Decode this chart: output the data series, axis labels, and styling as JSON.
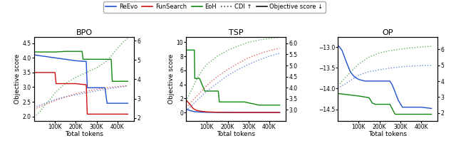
{
  "bpo": {
    "title": "BPO",
    "xlabel": "Total tokens",
    "ylabel": "Objective score",
    "xlim": [
      0,
      480000
    ],
    "ylim_left": [
      1.85,
      4.72
    ],
    "ylim_right": [
      1.85,
      6.2
    ],
    "xticks": [
      100000,
      200000,
      300000,
      400000
    ],
    "xtick_labels": [
      "100K",
      "200K",
      "300K",
      "400K"
    ],
    "yticks_left": [
      2.0,
      2.5,
      3.0,
      3.5,
      4.0,
      4.5
    ],
    "yticks_right": [
      2.0,
      3.0,
      4.0,
      5.0,
      6.0
    ],
    "reevo_obj": [
      [
        0,
        4.1
      ],
      [
        50000,
        4.05
      ],
      [
        100000,
        4.0
      ],
      [
        150000,
        3.95
      ],
      [
        200000,
        3.9
      ],
      [
        240000,
        3.88
      ],
      [
        250000,
        3.88
      ],
      [
        255000,
        2.98
      ],
      [
        260000,
        2.98
      ],
      [
        300000,
        2.98
      ],
      [
        340000,
        2.98
      ],
      [
        350000,
        2.45
      ],
      [
        360000,
        2.45
      ],
      [
        450000,
        2.45
      ]
    ],
    "funsearch_obj": [
      [
        0,
        3.5
      ],
      [
        100000,
        3.5
      ],
      [
        105000,
        3.12
      ],
      [
        150000,
        3.12
      ],
      [
        200000,
        3.12
      ],
      [
        250000,
        3.08
      ],
      [
        255000,
        2.08
      ],
      [
        260000,
        2.08
      ],
      [
        380000,
        2.08
      ],
      [
        385000,
        2.08
      ],
      [
        450000,
        2.08
      ]
    ],
    "eoh_obj": [
      [
        0,
        4.2
      ],
      [
        100000,
        4.2
      ],
      [
        150000,
        4.22
      ],
      [
        200000,
        4.22
      ],
      [
        230000,
        4.22
      ],
      [
        235000,
        3.95
      ],
      [
        250000,
        3.95
      ],
      [
        290000,
        3.95
      ],
      [
        320000,
        3.95
      ],
      [
        370000,
        3.95
      ],
      [
        375000,
        3.2
      ],
      [
        390000,
        3.2
      ],
      [
        450000,
        3.2
      ]
    ],
    "reevo_cdi": [
      [
        0,
        2.55
      ],
      [
        50000,
        2.75
      ],
      [
        100000,
        2.95
      ],
      [
        150000,
        3.1
      ],
      [
        200000,
        3.2
      ],
      [
        250000,
        3.3
      ],
      [
        300000,
        3.4
      ],
      [
        350000,
        3.5
      ],
      [
        400000,
        3.58
      ],
      [
        450000,
        3.65
      ]
    ],
    "funsearch_cdi": [
      [
        0,
        2.45
      ],
      [
        50000,
        2.68
      ],
      [
        100000,
        2.9
      ],
      [
        150000,
        3.08
      ],
      [
        200000,
        3.25
      ],
      [
        250000,
        3.38
      ],
      [
        300000,
        3.48
      ],
      [
        350000,
        3.56
      ],
      [
        400000,
        3.62
      ],
      [
        450000,
        3.68
      ]
    ],
    "eoh_cdi": [
      [
        0,
        2.05
      ],
      [
        30000,
        2.35
      ],
      [
        50000,
        2.65
      ],
      [
        80000,
        3.0
      ],
      [
        100000,
        3.3
      ],
      [
        130000,
        3.6
      ],
      [
        150000,
        3.78
      ],
      [
        200000,
        4.1
      ],
      [
        250000,
        4.35
      ],
      [
        300000,
        4.6
      ],
      [
        350000,
        4.95
      ],
      [
        400000,
        5.6
      ],
      [
        430000,
        5.95
      ],
      [
        450000,
        6.12
      ]
    ]
  },
  "tsp": {
    "title": "TSP",
    "xlabel": "Total tokens",
    "ylabel": "Objective score",
    "xlim": [
      0,
      480000
    ],
    "ylim_left": [
      -1.2,
      10.8
    ],
    "ylim_right": [
      2.5,
      6.3
    ],
    "xticks": [
      100000,
      200000,
      300000,
      400000
    ],
    "xtick_labels": [
      "100K",
      "200K",
      "300K",
      "400K"
    ],
    "yticks_left": [
      0,
      2,
      4,
      6,
      8,
      10
    ],
    "yticks_right": [
      3.0,
      3.5,
      4.0,
      4.5,
      5.0,
      5.5,
      6.0
    ],
    "reevo_obj": [
      [
        0,
        0.5
      ],
      [
        20000,
        0.25
      ],
      [
        40000,
        0.12
      ],
      [
        70000,
        0.05
      ],
      [
        100000,
        0.02
      ],
      [
        200000,
        0.0
      ],
      [
        450000,
        0.0
      ]
    ],
    "funsearch_obj": [
      [
        0,
        1.8
      ],
      [
        20000,
        1.1
      ],
      [
        35000,
        0.55
      ],
      [
        50000,
        0.3
      ],
      [
        70000,
        0.18
      ],
      [
        100000,
        0.08
      ],
      [
        150000,
        0.03
      ],
      [
        200000,
        0.01
      ],
      [
        300000,
        0.0
      ],
      [
        450000,
        0.0
      ]
    ],
    "eoh_obj": [
      [
        0,
        8.9
      ],
      [
        40000,
        8.9
      ],
      [
        42000,
        4.85
      ],
      [
        60000,
        4.85
      ],
      [
        65000,
        4.85
      ],
      [
        90000,
        3.05
      ],
      [
        100000,
        3.05
      ],
      [
        155000,
        3.05
      ],
      [
        160000,
        1.5
      ],
      [
        230000,
        1.5
      ],
      [
        280000,
        1.5
      ],
      [
        350000,
        1.05
      ],
      [
        360000,
        1.05
      ],
      [
        450000,
        1.05
      ]
    ],
    "reevo_cdi": [
      [
        0,
        2.95
      ],
      [
        50000,
        3.4
      ],
      [
        100000,
        3.85
      ],
      [
        150000,
        4.2
      ],
      [
        200000,
        4.55
      ],
      [
        250000,
        4.82
      ],
      [
        300000,
        5.05
      ],
      [
        350000,
        5.25
      ],
      [
        400000,
        5.42
      ],
      [
        450000,
        5.55
      ]
    ],
    "funsearch_cdi": [
      [
        0,
        3.1
      ],
      [
        50000,
        3.6
      ],
      [
        100000,
        4.1
      ],
      [
        150000,
        4.5
      ],
      [
        200000,
        4.82
      ],
      [
        250000,
        5.1
      ],
      [
        300000,
        5.35
      ],
      [
        350000,
        5.52
      ],
      [
        400000,
        5.67
      ],
      [
        450000,
        5.78
      ]
    ],
    "eoh_cdi": [
      [
        0,
        3.4
      ],
      [
        50000,
        4.35
      ],
      [
        80000,
        4.82
      ],
      [
        100000,
        5.05
      ],
      [
        150000,
        5.42
      ],
      [
        200000,
        5.68
      ],
      [
        250000,
        5.88
      ],
      [
        300000,
        6.05
      ],
      [
        350000,
        6.15
      ],
      [
        400000,
        6.22
      ],
      [
        450000,
        6.28
      ]
    ]
  },
  "op": {
    "title": "OP",
    "xlabel": "Total tokens",
    "ylabel": "Objective score",
    "xlim": [
      0,
      480000
    ],
    "ylim_left": [
      -14.78,
      -12.75
    ],
    "ylim_right": [
      1.5,
      6.8
    ],
    "xticks": [
      100000,
      200000,
      300000,
      400000
    ],
    "xtick_labels": [
      "100K",
      "200K",
      "300K",
      "400K"
    ],
    "yticks_left": [
      -14.5,
      -14.0,
      -13.5,
      -13.0
    ],
    "yticks_right": [
      2.0,
      3.0,
      4.0,
      5.0,
      6.0
    ],
    "reevo_obj": [
      [
        0,
        -12.95
      ],
      [
        20000,
        -13.08
      ],
      [
        40000,
        -13.35
      ],
      [
        60000,
        -13.6
      ],
      [
        80000,
        -13.72
      ],
      [
        100000,
        -13.78
      ],
      [
        130000,
        -13.82
      ],
      [
        170000,
        -13.82
      ],
      [
        200000,
        -13.82
      ],
      [
        250000,
        -13.82
      ],
      [
        260000,
        -13.9
      ],
      [
        270000,
        -14.02
      ],
      [
        290000,
        -14.28
      ],
      [
        310000,
        -14.45
      ],
      [
        350000,
        -14.45
      ],
      [
        400000,
        -14.45
      ],
      [
        450000,
        -14.48
      ]
    ],
    "funsearch_obj": [],
    "eoh_obj": [
      [
        0,
        -14.12
      ],
      [
        50000,
        -14.15
      ],
      [
        100000,
        -14.18
      ],
      [
        150000,
        -14.22
      ],
      [
        165000,
        -14.35
      ],
      [
        180000,
        -14.38
      ],
      [
        210000,
        -14.38
      ],
      [
        250000,
        -14.38
      ],
      [
        275000,
        -14.62
      ],
      [
        290000,
        -14.62
      ],
      [
        400000,
        -14.62
      ],
      [
        450000,
        -14.62
      ]
    ],
    "reevo_cdi": [
      [
        0,
        3.55
      ],
      [
        50000,
        3.95
      ],
      [
        100000,
        4.38
      ],
      [
        150000,
        4.6
      ],
      [
        200000,
        4.72
      ],
      [
        250000,
        4.82
      ],
      [
        300000,
        4.9
      ],
      [
        350000,
        4.95
      ],
      [
        400000,
        4.98
      ],
      [
        450000,
        5.0
      ]
    ],
    "funsearch_cdi": [],
    "eoh_cdi": [
      [
        0,
        3.72
      ],
      [
        50000,
        4.42
      ],
      [
        100000,
        5.08
      ],
      [
        150000,
        5.52
      ],
      [
        200000,
        5.78
      ],
      [
        250000,
        5.92
      ],
      [
        300000,
        6.02
      ],
      [
        350000,
        6.1
      ],
      [
        400000,
        6.15
      ],
      [
        450000,
        6.2
      ]
    ]
  },
  "colors": {
    "reevo": "#1f4fcc",
    "funsearch": "#cc1111",
    "eoh": "#118811"
  }
}
